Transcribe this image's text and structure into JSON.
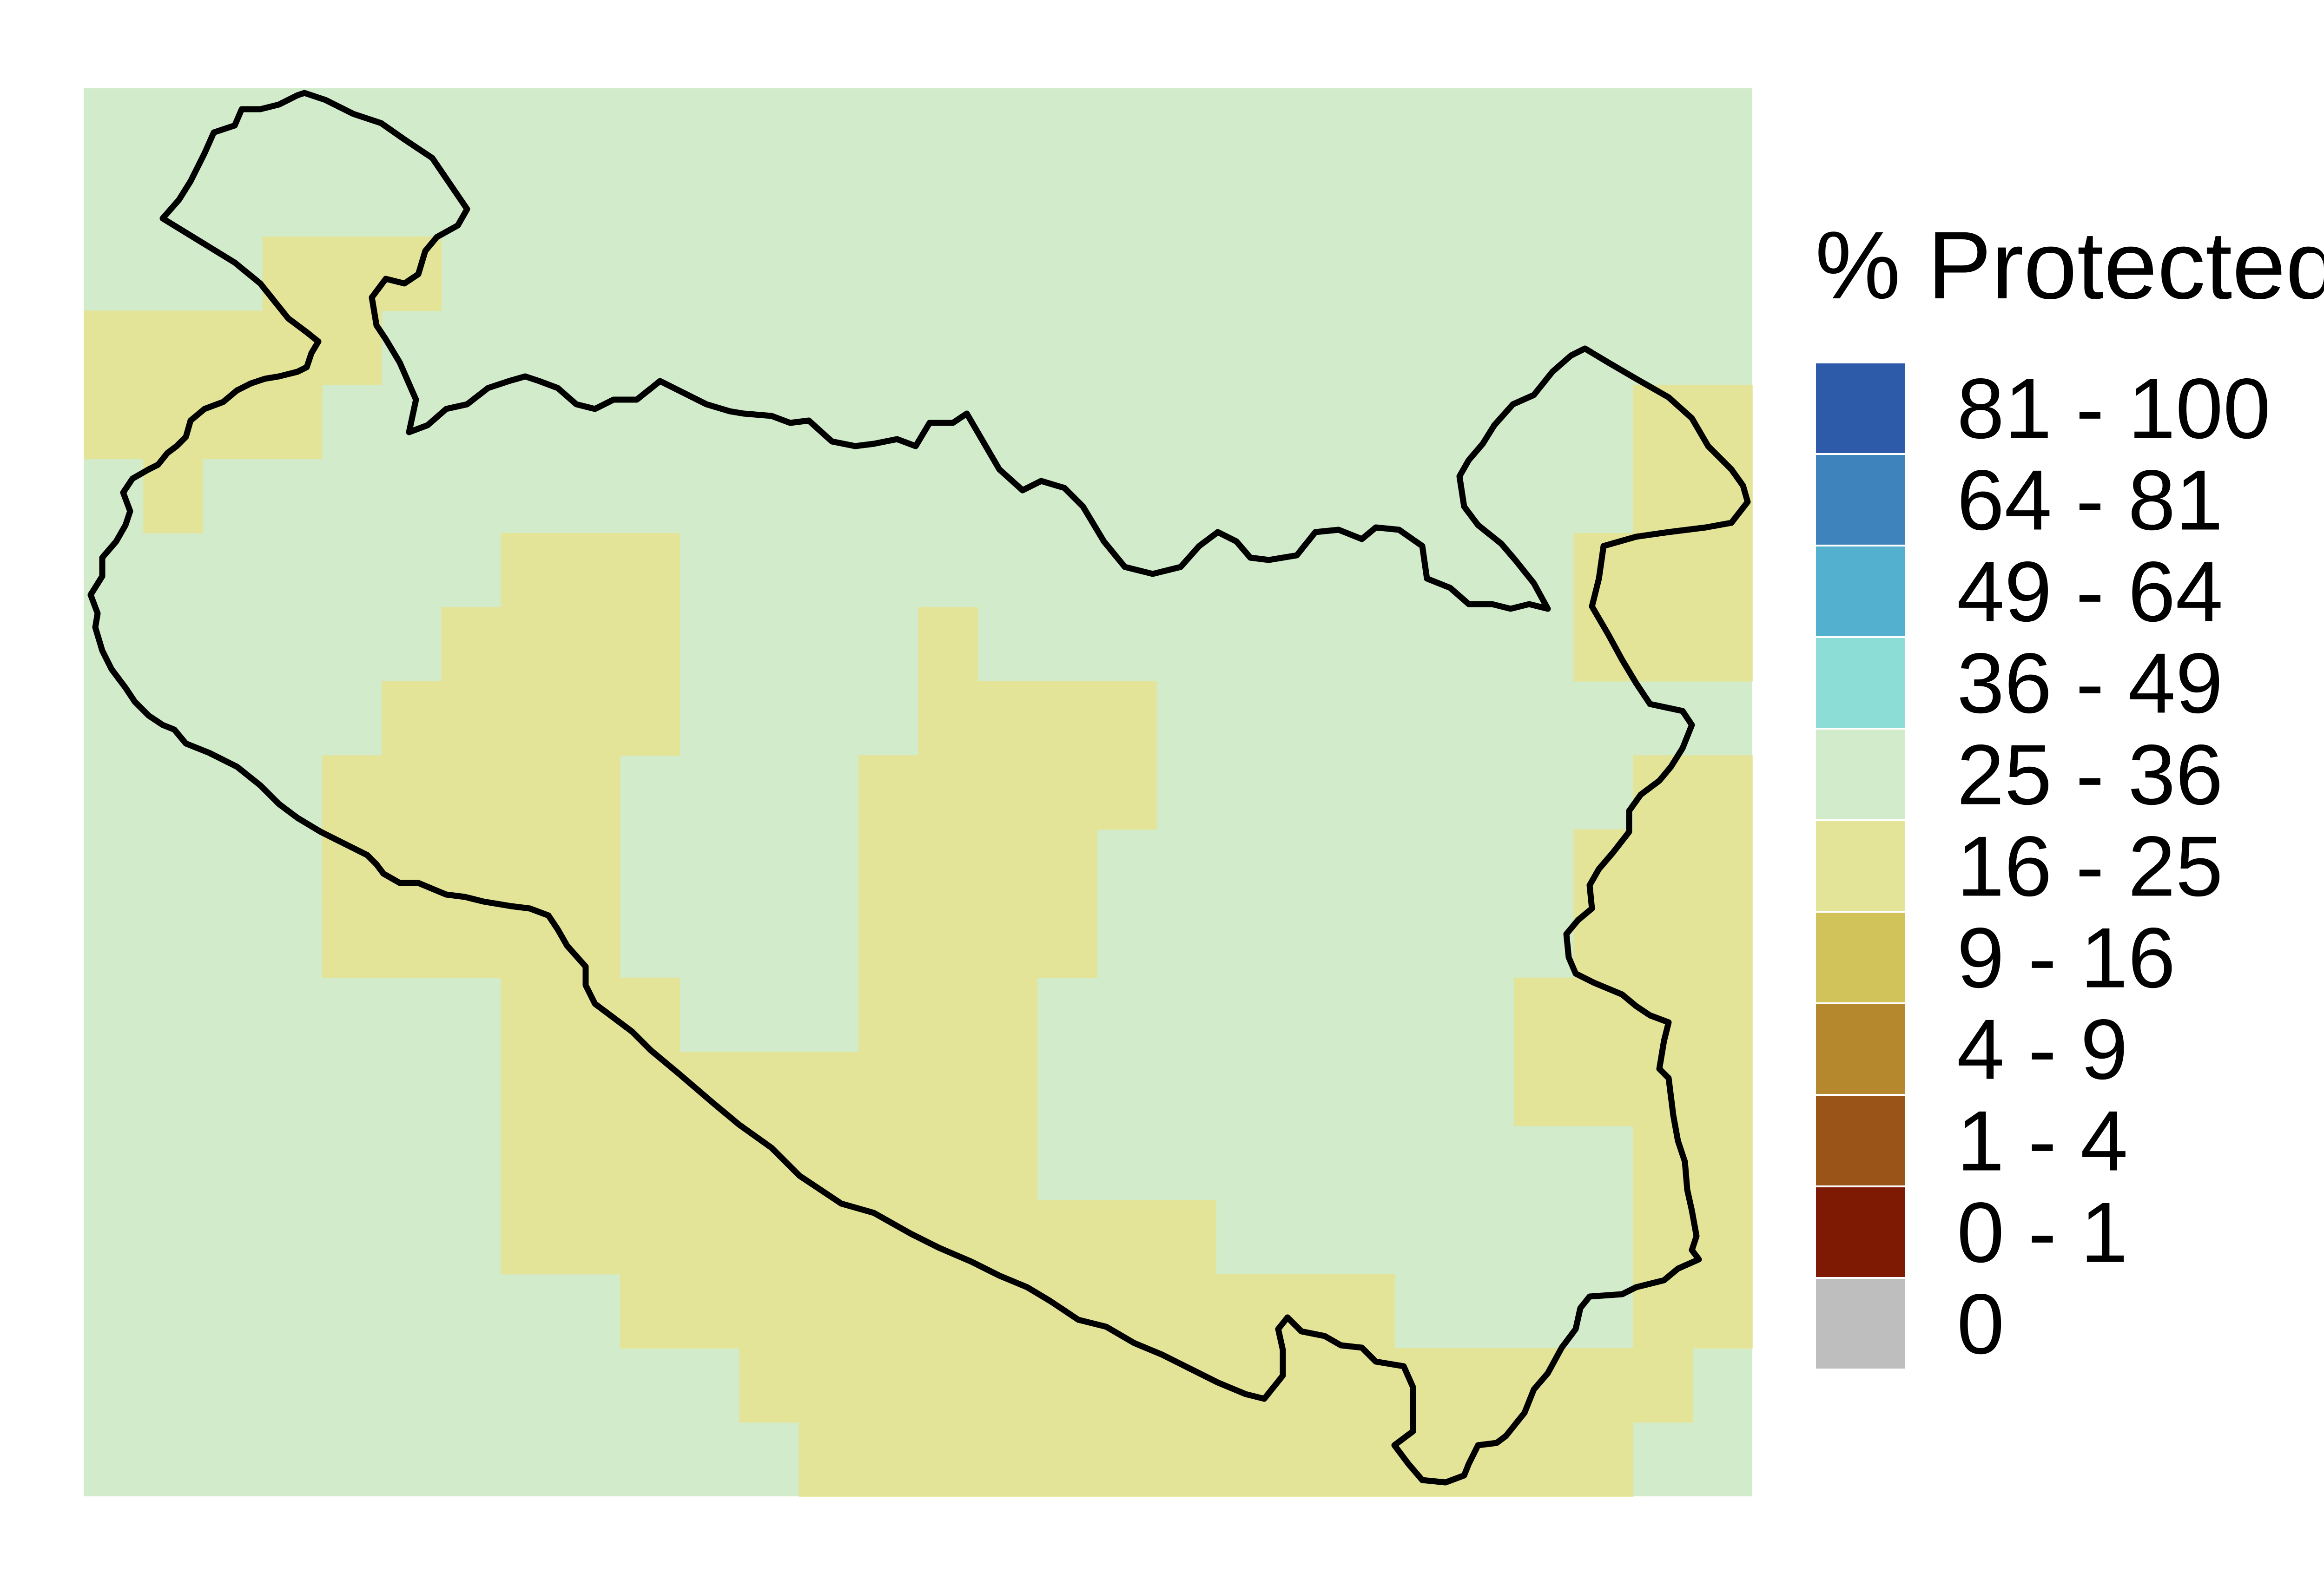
{
  "map": {
    "background_color": "#d2ebcb",
    "grid": {
      "rows": 19,
      "cols": 28
    },
    "cells_16_25": [
      [
        2,
        3
      ],
      [
        2,
        4
      ],
      [
        2,
        5
      ],
      [
        3,
        0
      ],
      [
        3,
        1
      ],
      [
        3,
        2
      ],
      [
        3,
        3
      ],
      [
        3,
        4
      ],
      [
        4,
        0
      ],
      [
        4,
        1
      ],
      [
        4,
        2
      ],
      [
        4,
        3
      ],
      [
        4,
        26
      ],
      [
        4,
        27
      ],
      [
        5,
        1
      ],
      [
        5,
        26
      ],
      [
        5,
        27
      ],
      [
        6,
        7
      ],
      [
        6,
        8
      ],
      [
        6,
        9
      ],
      [
        6,
        25
      ],
      [
        6,
        26
      ],
      [
        6,
        27
      ],
      [
        7,
        6
      ],
      [
        7,
        7
      ],
      [
        7,
        8
      ],
      [
        7,
        9
      ],
      [
        7,
        14
      ],
      [
        7,
        25
      ],
      [
        7,
        26
      ],
      [
        7,
        27
      ],
      [
        8,
        5
      ],
      [
        8,
        6
      ],
      [
        8,
        7
      ],
      [
        8,
        8
      ],
      [
        8,
        9
      ],
      [
        8,
        14
      ],
      [
        8,
        15
      ],
      [
        8,
        16
      ],
      [
        8,
        17
      ],
      [
        9,
        4
      ],
      [
        9,
        5
      ],
      [
        9,
        6
      ],
      [
        9,
        7
      ],
      [
        9,
        8
      ],
      [
        9,
        13
      ],
      [
        9,
        14
      ],
      [
        9,
        15
      ],
      [
        9,
        16
      ],
      [
        9,
        17
      ],
      [
        9,
        26
      ],
      [
        9,
        27
      ],
      [
        10,
        4
      ],
      [
        10,
        5
      ],
      [
        10,
        6
      ],
      [
        10,
        7
      ],
      [
        10,
        8
      ],
      [
        10,
        13
      ],
      [
        10,
        14
      ],
      [
        10,
        15
      ],
      [
        10,
        16
      ],
      [
        10,
        25
      ],
      [
        10,
        26
      ],
      [
        10,
        27
      ],
      [
        11,
        4
      ],
      [
        11,
        5
      ],
      [
        11,
        6
      ],
      [
        11,
        7
      ],
      [
        11,
        8
      ],
      [
        11,
        13
      ],
      [
        11,
        14
      ],
      [
        11,
        15
      ],
      [
        11,
        16
      ],
      [
        11,
        25
      ],
      [
        11,
        26
      ],
      [
        11,
        27
      ],
      [
        12,
        7
      ],
      [
        12,
        8
      ],
      [
        12,
        9
      ],
      [
        12,
        13
      ],
      [
        12,
        14
      ],
      [
        12,
        15
      ],
      [
        12,
        24
      ],
      [
        12,
        25
      ],
      [
        12,
        26
      ],
      [
        12,
        27
      ],
      [
        13,
        7
      ],
      [
        13,
        8
      ],
      [
        13,
        9
      ],
      [
        13,
        10
      ],
      [
        13,
        11
      ],
      [
        13,
        12
      ],
      [
        13,
        13
      ],
      [
        13,
        14
      ],
      [
        13,
        15
      ],
      [
        13,
        24
      ],
      [
        13,
        25
      ],
      [
        13,
        26
      ],
      [
        13,
        27
      ],
      [
        14,
        7
      ],
      [
        14,
        8
      ],
      [
        14,
        9
      ],
      [
        14,
        10
      ],
      [
        14,
        11
      ],
      [
        14,
        12
      ],
      [
        14,
        13
      ],
      [
        14,
        14
      ],
      [
        14,
        15
      ],
      [
        14,
        26
      ],
      [
        14,
        27
      ],
      [
        15,
        7
      ],
      [
        15,
        8
      ],
      [
        15,
        9
      ],
      [
        15,
        10
      ],
      [
        15,
        11
      ],
      [
        15,
        12
      ],
      [
        15,
        13
      ],
      [
        15,
        14
      ],
      [
        15,
        15
      ],
      [
        15,
        16
      ],
      [
        15,
        17
      ],
      [
        15,
        18
      ],
      [
        15,
        26
      ],
      [
        15,
        27
      ],
      [
        16,
        9
      ],
      [
        16,
        10
      ],
      [
        16,
        11
      ],
      [
        16,
        12
      ],
      [
        16,
        13
      ],
      [
        16,
        14
      ],
      [
        16,
        15
      ],
      [
        16,
        16
      ],
      [
        16,
        17
      ],
      [
        16,
        18
      ],
      [
        16,
        19
      ],
      [
        16,
        20
      ],
      [
        16,
        21
      ],
      [
        16,
        26
      ],
      [
        16,
        27
      ],
      [
        17,
        11
      ],
      [
        17,
        12
      ],
      [
        17,
        13
      ],
      [
        17,
        14
      ],
      [
        17,
        15
      ],
      [
        17,
        16
      ],
      [
        17,
        17
      ],
      [
        17,
        18
      ],
      [
        17,
        19
      ],
      [
        17,
        20
      ],
      [
        17,
        21
      ],
      [
        17,
        22
      ],
      [
        17,
        23
      ],
      [
        17,
        24
      ],
      [
        17,
        25
      ],
      [
        17,
        26
      ],
      [
        18,
        12
      ],
      [
        18,
        13
      ],
      [
        18,
        14
      ],
      [
        18,
        15
      ],
      [
        18,
        16
      ],
      [
        18,
        17
      ],
      [
        18,
        18
      ],
      [
        18,
        19
      ],
      [
        18,
        20
      ],
      [
        18,
        21
      ],
      [
        18,
        22
      ],
      [
        18,
        23
      ],
      [
        18,
        24
      ],
      [
        18,
        25
      ]
    ],
    "outline_color": "#000000"
  },
  "legend": {
    "title": "% Protected",
    "items": [
      {
        "label": "81 - 100",
        "color": "#2d5aa9"
      },
      {
        "label": "64 - 81",
        "color": "#3f83bd"
      },
      {
        "label": "49 - 64",
        "color": "#53b0cf"
      },
      {
        "label": "36 - 49",
        "color": "#8cddd6"
      },
      {
        "label": "25 - 36",
        "color": "#d2ebcb"
      },
      {
        "label": "16 - 25",
        "color": "#e4e498"
      },
      {
        "label": "9 - 16",
        "color": "#d1c25a"
      },
      {
        "label": "4 - 9",
        "color": "#b5882d"
      },
      {
        "label": "1 - 4",
        "color": "#9a5417"
      },
      {
        "label": "0 - 1",
        "color": "#7e1a04"
      },
      {
        "label": "0",
        "color": "#bebebe"
      }
    ]
  }
}
